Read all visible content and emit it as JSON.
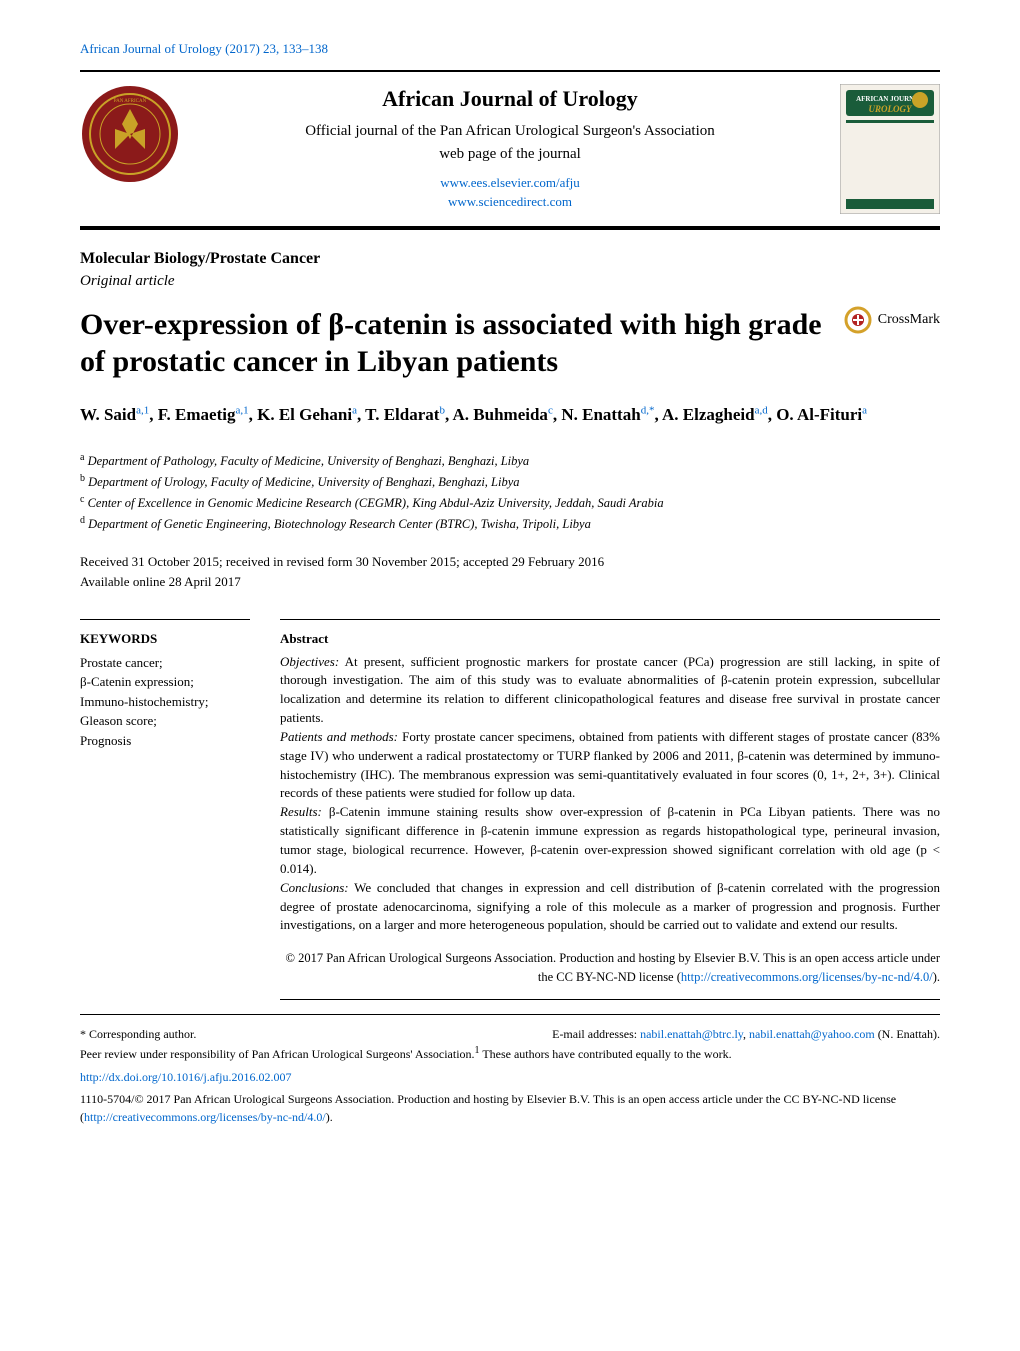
{
  "top_citation": "African Journal of Urology (2017) 23, 133–138",
  "header": {
    "journal_name": "African Journal of Urology",
    "subtitle_line1": "Official journal of the Pan African Urological Surgeon's Association",
    "subtitle_line2": "web page of the journal",
    "url1": "www.ees.elsevier.com/afju",
    "url2": "www.sciencedirect.com",
    "left_logo_alt": "Pan African Urological Surgeon's Association Logo",
    "right_logo_label": "AFRICAN JOURNAL UROLOGY"
  },
  "section_label": "Molecular Biology/Prostate Cancer",
  "article_type": "Original article",
  "title": "Over-expression of β-catenin is associated with high grade of prostatic cancer in Libyan patients",
  "crossmark_label": "CrossMark",
  "authors_html": "W. Said<sup>a,1</sup>, F. Emaetig<sup>a,1</sup>, K. El Gehani<sup>a</sup>, T. Eldarat<sup>b</sup>, A. Buhmeida<sup>c</sup>, N. Enattah<sup>d,*</sup>, A. Elzagheid<sup>a,d</sup>, O. Al-Fituri<sup>a</sup>",
  "affiliations": [
    {
      "sup": "a",
      "text": "Department of Pathology, Faculty of Medicine, University of Benghazi, Benghazi, Libya"
    },
    {
      "sup": "b",
      "text": "Department of Urology, Faculty of Medicine, University of Benghazi, Benghazi, Libya"
    },
    {
      "sup": "c",
      "text": "Center of Excellence in Genomic Medicine Research (CEGMR), King Abdul-Aziz University, Jeddah, Saudi Arabia"
    },
    {
      "sup": "d",
      "text": "Department of Genetic Engineering, Biotechnology Research Center (BTRC), Twisha, Tripoli, Libya"
    }
  ],
  "dates_line1": "Received 31 October 2015; received in revised form 30 November 2015; accepted 29 February 2016",
  "dates_line2": "Available online 28 April 2017",
  "keywords": {
    "heading": "KEYWORDS",
    "items": "Prostate cancer;\nβ-Catenin expression;\nImmuno-histochemistry;\nGleason score;\nPrognosis"
  },
  "abstract": {
    "heading": "Abstract",
    "objectives_label": "Objectives:",
    "objectives": "At present, sufficient prognostic markers for prostate cancer (PCa) progression are still lacking, in spite of thorough investigation. The aim of this study was to evaluate abnormalities of β-catenin protein expression, subcellular localization and determine its relation to different clinicopathological features and disease free survival in prostate cancer patients.",
    "patients_label": "Patients and methods:",
    "patients": "Forty prostate cancer specimens, obtained from patients with different stages of prostate cancer (83% stage IV) who underwent a radical prostatectomy or TURP flanked by 2006 and 2011, β-catenin was determined by immuno-histochemistry (IHC). The membranous expression was semi-quantitatively evaluated in four scores (0, 1+, 2+, 3+). Clinical records of these patients were studied for follow up data.",
    "results_label": "Results:",
    "results": "β-Catenin immune staining results show over-expression of β-catenin in PCa Libyan patients. There was no statistically significant difference in β-catenin immune expression as regards histopathological type, perineural invasion, tumor stage, biological recurrence. However, β-catenin over-expression showed significant correlation with old age (p < 0.014).",
    "conclusions_label": "Conclusions:",
    "conclusions": "We concluded that changes in expression and cell distribution of β-catenin correlated with the progression degree of prostate adenocarcinoma, signifying a role of this molecule as a marker of progression and prognosis. Further investigations, on a larger and more heterogeneous population, should be carried out to validate and extend our results."
  },
  "copyright": "© 2017 Pan African Urological Surgeons Association. Production and hosting by Elsevier B.V. This is an open access article under the CC BY-NC-ND license (",
  "cc_link": "http://creativecommons.org/licenses/by-nc-nd/4.0/",
  "copyright_close": ").",
  "footnotes": {
    "corresponding": "* Corresponding author.",
    "emails_label": "E-mail addresses:",
    "email1": "nabil.enattah@btrc.ly",
    "email2": "nabil.enattah@yahoo.com",
    "email_name": "(N. Enattah).",
    "peer_review": "Peer review under responsibility of Pan African Urological Surgeons' Association.",
    "equal_contrib_sup": "1",
    "equal_contrib": "These authors have contributed equally to the work."
  },
  "doi": "http://dx.doi.org/10.1016/j.afju.2016.02.007",
  "issn_line": "1110-5704/© 2017 Pan African Urological Surgeons Association. Production and hosting by Elsevier B.V. This is an open access article under the CC BY-NC-ND license (",
  "issn_link": "http://creativecommons.org/licenses/by-nc-nd/4.0/",
  "issn_close": ").",
  "colors": {
    "link": "#0066cc",
    "left_logo_bg": "#8b1a1a",
    "left_logo_ring": "#c9a227",
    "right_logo_bg": "#1a5c3a",
    "right_logo_accent": "#c9a227",
    "crossmark_ring": "#d4a12a"
  }
}
